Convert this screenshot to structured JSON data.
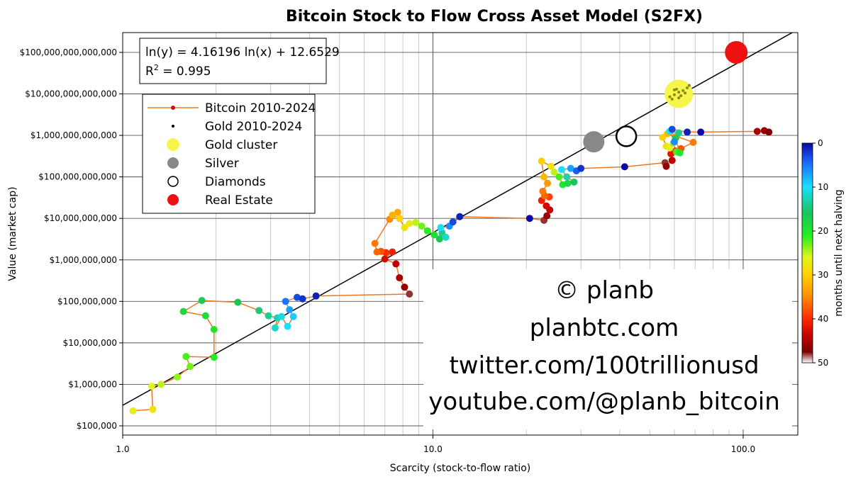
{
  "chart_data": {
    "type": "scatter",
    "title": "Bitcoin Stock to Flow Cross Asset Model (S2FX)",
    "xlabel": "Scarcity (stock-to-flow ratio)",
    "ylabel": "Value (market cap)",
    "x_scale": "log",
    "y_scale": "log",
    "xlim": [
      1,
      150
    ],
    "ylim": [
      60000,
      300000000000000
    ],
    "x_ticks": [
      {
        "v": 1,
        "label": "1.0"
      },
      {
        "v": 10,
        "label": "10.0"
      },
      {
        "v": 100,
        "label": "100.0"
      }
    ],
    "y_ticks": [
      {
        "v": 100000,
        "label": "$100,000"
      },
      {
        "v": 1000000,
        "label": "$1,000,000"
      },
      {
        "v": 10000000,
        "label": "$10,000,000"
      },
      {
        "v": 100000000,
        "label": "$100,000,000"
      },
      {
        "v": 1000000000,
        "label": "$1,000,000,000"
      },
      {
        "v": 10000000000,
        "label": "$10,000,000,000"
      },
      {
        "v": 100000000000,
        "label": "$100,000,000,000"
      },
      {
        "v": 1000000000000,
        "label": "$1,000,000,000,000"
      },
      {
        "v": 10000000000000,
        "label": "$10,000,000,000,000"
      },
      {
        "v": 100000000000000,
        "label": "$100,000,000,000,000"
      }
    ],
    "grid": true,
    "equation_text": "ln(y) = 4.16196 ln(x) + 12.6529",
    "r2_label": "R",
    "r2_sup": "2",
    "r2_value": " = 0.995",
    "regression": {
      "slope": 4.16196,
      "intercept": 12.6529
    },
    "legend": {
      "position": "upper-left",
      "items": [
        {
          "label": "Bitcoin 2010-2024",
          "marker": "line-dot",
          "color": "#f07820"
        },
        {
          "label": "Gold 2010-2024",
          "marker": "small-dot",
          "color": "#000000"
        },
        {
          "label": "Gold cluster",
          "marker": "dot",
          "color": "#f5f54a"
        },
        {
          "label": "Silver",
          "marker": "dot",
          "color": "#888888"
        },
        {
          "label": "Diamonds",
          "marker": "ring",
          "color": "#000000"
        },
        {
          "label": "Real Estate",
          "marker": "dot",
          "color": "#ee1111"
        }
      ]
    },
    "colorbar": {
      "label": "months until next halving",
      "ticks": [
        0,
        10,
        20,
        30,
        40,
        50
      ],
      "range": [
        0,
        50
      ],
      "colors": [
        "#0a0aa0",
        "#1a6cff",
        "#19e0ff",
        "#1bc45a",
        "#22ee22",
        "#e0f51a",
        "#ffd000",
        "#ff8c00",
        "#ff2a00",
        "#c00000",
        "#7a0000",
        "#ffffff"
      ]
    },
    "assets": [
      {
        "name": "Silver",
        "x": 33,
        "y": 700000000000,
        "color": "#888888"
      },
      {
        "name": "Diamonds",
        "x": 42,
        "y": 950000000000,
        "color": "none"
      },
      {
        "name": "Gold cluster",
        "x": 62,
        "y": 10000000000000,
        "color": "#f5f54a"
      },
      {
        "name": "Real Estate",
        "x": 95,
        "y": 100000000000000,
        "color": "#ee1111"
      }
    ],
    "gold_points": [
      [
        58,
        8500000000000
      ],
      [
        60,
        9500000000000
      ],
      [
        62,
        11000000000000
      ],
      [
        64,
        12000000000000
      ],
      [
        61,
        13000000000000
      ],
      [
        63,
        9000000000000
      ],
      [
        66,
        14000000000000
      ],
      [
        59,
        7500000000000
      ],
      [
        65,
        10500000000000
      ],
      [
        67,
        16000000000000
      ],
      [
        60,
        12500000000000
      ],
      [
        62,
        8000000000000
      ]
    ],
    "bitcoin_series": [
      {
        "x": 1.08,
        "y": 230000,
        "m": 27
      },
      {
        "x": 1.25,
        "y": 250000,
        "m": 28
      },
      {
        "x": 1.24,
        "y": 900000,
        "m": 26
      },
      {
        "x": 1.33,
        "y": 1000000,
        "m": 25
      },
      {
        "x": 1.5,
        "y": 1500000,
        "m": 24
      },
      {
        "x": 1.65,
        "y": 2700000,
        "m": 23
      },
      {
        "x": 1.6,
        "y": 4700000,
        "m": 22
      },
      {
        "x": 1.97,
        "y": 4500000,
        "m": 21
      },
      {
        "x": 1.97,
        "y": 21000000,
        "m": 20
      },
      {
        "x": 1.85,
        "y": 45000000,
        "m": 19
      },
      {
        "x": 1.57,
        "y": 57000000,
        "m": 18
      },
      {
        "x": 1.8,
        "y": 105000000,
        "m": 17
      },
      {
        "x": 2.35,
        "y": 95000000,
        "m": 16
      },
      {
        "x": 2.75,
        "y": 60000000,
        "m": 15
      },
      {
        "x": 2.95,
        "y": 45000000,
        "m": 14
      },
      {
        "x": 3.15,
        "y": 40000000,
        "m": 13
      },
      {
        "x": 3.1,
        "y": 23000000,
        "m": 12
      },
      {
        "x": 3.25,
        "y": 43000000,
        "m": 11
      },
      {
        "x": 3.4,
        "y": 25000000,
        "m": 10
      },
      {
        "x": 3.55,
        "y": 43000000,
        "m": 9
      },
      {
        "x": 3.45,
        "y": 63000000,
        "m": 7
      },
      {
        "x": 3.35,
        "y": 100000000,
        "m": 5
      },
      {
        "x": 3.65,
        "y": 125000000,
        "m": 3
      },
      {
        "x": 3.8,
        "y": 115000000,
        "m": 2
      },
      {
        "x": 4.2,
        "y": 135000000,
        "m": 1
      },
      {
        "x": 8.4,
        "y": 150000000,
        "m": 48
      },
      {
        "x": 8.1,
        "y": 220000000,
        "m": 46
      },
      {
        "x": 7.8,
        "y": 370000000,
        "m": 45
      },
      {
        "x": 7.6,
        "y": 800000000,
        "m": 44
      },
      {
        "x": 7.0,
        "y": 1050000000,
        "m": 43
      },
      {
        "x": 7.4,
        "y": 1550000000,
        "m": 41
      },
      {
        "x": 7.05,
        "y": 1500000000,
        "m": 40
      },
      {
        "x": 6.8,
        "y": 1600000000,
        "m": 38
      },
      {
        "x": 6.6,
        "y": 1550000000,
        "m": 37
      },
      {
        "x": 6.5,
        "y": 2500000000,
        "m": 36
      },
      {
        "x": 7.25,
        "y": 9500000000,
        "m": 35
      },
      {
        "x": 7.7,
        "y": 14000000000,
        "m": 33
      },
      {
        "x": 7.4,
        "y": 12000000000,
        "m": 32
      },
      {
        "x": 7.8,
        "y": 10000000000,
        "m": 30
      },
      {
        "x": 8.1,
        "y": 6000000000,
        "m": 28
      },
      {
        "x": 8.4,
        "y": 7500000000,
        "m": 27
      },
      {
        "x": 8.8,
        "y": 8000000000,
        "m": 25
      },
      {
        "x": 9.2,
        "y": 6500000000,
        "m": 23
      },
      {
        "x": 9.6,
        "y": 5000000000,
        "m": 21
      },
      {
        "x": 10.1,
        "y": 4000000000,
        "m": 19
      },
      {
        "x": 10.5,
        "y": 3200000000,
        "m": 17
      },
      {
        "x": 10.7,
        "y": 4500000000,
        "m": 14
      },
      {
        "x": 11.0,
        "y": 3500000000,
        "m": 12
      },
      {
        "x": 10.6,
        "y": 6000000000,
        "m": 10
      },
      {
        "x": 11.3,
        "y": 6500000000,
        "m": 6
      },
      {
        "x": 11.6,
        "y": 8200000000,
        "m": 3
      },
      {
        "x": 12.2,
        "y": 11000000000,
        "m": 1
      },
      {
        "x": 20.5,
        "y": 10000000000,
        "m": 0
      },
      {
        "x": 22.8,
        "y": 9000000000,
        "m": 48
      },
      {
        "x": 23.3,
        "y": 11500000000,
        "m": 46
      },
      {
        "x": 23.8,
        "y": 16000000000,
        "m": 44
      },
      {
        "x": 23.2,
        "y": 20000000000,
        "m": 43
      },
      {
        "x": 22.4,
        "y": 27000000000,
        "m": 41
      },
      {
        "x": 23.7,
        "y": 33000000000,
        "m": 39
      },
      {
        "x": 22.9,
        "y": 35000000000,
        "m": 37
      },
      {
        "x": 22.6,
        "y": 45000000000,
        "m": 36
      },
      {
        "x": 23.4,
        "y": 70000000000,
        "m": 34
      },
      {
        "x": 22.8,
        "y": 100000000000,
        "m": 32
      },
      {
        "x": 22.4,
        "y": 240000000000,
        "m": 30
      },
      {
        "x": 24.0,
        "y": 180000000000,
        "m": 28
      },
      {
        "x": 24.6,
        "y": 130000000000,
        "m": 25
      },
      {
        "x": 25.5,
        "y": 100000000000,
        "m": 22
      },
      {
        "x": 26.2,
        "y": 65000000000,
        "m": 20
      },
      {
        "x": 27.2,
        "y": 70000000000,
        "m": 18
      },
      {
        "x": 28.5,
        "y": 75000000000,
        "m": 16
      },
      {
        "x": 27.0,
        "y": 100000000000,
        "m": 13
      },
      {
        "x": 26.0,
        "y": 150000000000,
        "m": 10
      },
      {
        "x": 27.8,
        "y": 160000000000,
        "m": 7
      },
      {
        "x": 29.0,
        "y": 140000000000,
        "m": 4
      },
      {
        "x": 30.0,
        "y": 160000000000,
        "m": 2
      },
      {
        "x": 41.5,
        "y": 175000000000,
        "m": 0
      },
      {
        "x": 56.0,
        "y": 220000000000,
        "m": 48
      },
      {
        "x": 56.5,
        "y": 180000000000,
        "m": 46
      },
      {
        "x": 59.0,
        "y": 250000000000,
        "m": 44
      },
      {
        "x": 58.5,
        "y": 360000000000,
        "m": 42
      },
      {
        "x": 60.5,
        "y": 420000000000,
        "m": 40
      },
      {
        "x": 63.0,
        "y": 480000000000,
        "m": 38
      },
      {
        "x": 69.0,
        "y": 680000000000,
        "m": 36
      },
      {
        "x": 61.0,
        "y": 950000000000,
        "m": 34
      },
      {
        "x": 57.0,
        "y": 1100000000000,
        "m": 32
      },
      {
        "x": 55.0,
        "y": 900000000000,
        "m": 30
      },
      {
        "x": 56.5,
        "y": 550000000000,
        "m": 28
      },
      {
        "x": 58.0,
        "y": 500000000000,
        "m": 26
      },
      {
        "x": 59.5,
        "y": 650000000000,
        "m": 24
      },
      {
        "x": 61.0,
        "y": 400000000000,
        "m": 22
      },
      {
        "x": 62.5,
        "y": 380000000000,
        "m": 20
      },
      {
        "x": 60.5,
        "y": 850000000000,
        "m": 17
      },
      {
        "x": 62.0,
        "y": 1150000000000,
        "m": 14
      },
      {
        "x": 58.0,
        "y": 1250000000000,
        "m": 10
      },
      {
        "x": 60.0,
        "y": 700000000000,
        "m": 6
      },
      {
        "x": 59.0,
        "y": 1400000000000,
        "m": 3
      },
      {
        "x": 66.0,
        "y": 1200000000000,
        "m": 1
      },
      {
        "x": 73.0,
        "y": 1200000000000,
        "m": 0
      },
      {
        "x": 111.0,
        "y": 1250000000000,
        "m": 45
      },
      {
        "x": 117.0,
        "y": 1300000000000,
        "m": 46
      },
      {
        "x": 121.0,
        "y": 1200000000000,
        "m": 47
      }
    ]
  },
  "watermark": [
    "© planb",
    "planbtc.com",
    "twitter.com/100trillionusd",
    "youtube.com/@planb_bitcoin"
  ]
}
